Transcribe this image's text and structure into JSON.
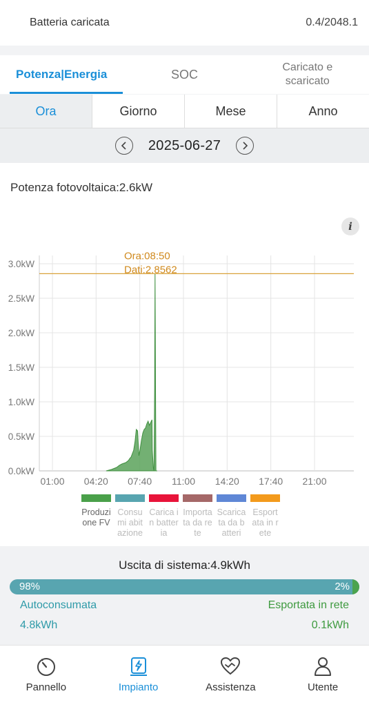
{
  "header": {
    "label": "Batteria caricata",
    "value": "0.4/2048.1"
  },
  "tabs": [
    "Potenza|Energia",
    "SOC",
    "Caricato e scaricato"
  ],
  "periods": [
    "Ora",
    "Giorno",
    "Mese",
    "Anno"
  ],
  "date": "2025-06-27",
  "pv_power": "Potenza fotovoltaica:2.6kW",
  "info_icon": "i",
  "chart_data": {
    "type": "area",
    "y_tick_labels": [
      "3.0kW",
      "2.5kW",
      "2.0kW",
      "1.5kW",
      "1.0kW",
      "0.5kW",
      "0.0kW"
    ],
    "x_tick_labels": [
      "01:00",
      "04:20",
      "07:40",
      "11:00",
      "14:20",
      "17:40",
      "21:00"
    ],
    "ylim": [
      0,
      3.0
    ],
    "xlim_hours": [
      0,
      24
    ],
    "grid": true,
    "tooltip": {
      "time_label": "Ora:08:50",
      "value_label": "Dati:2.8562",
      "value": 2.8562,
      "hour": 8.833
    },
    "series": [
      {
        "name": "Produzione FV",
        "color": "#5aa25a",
        "x": [
          5.1,
          5.5,
          5.9,
          6.1,
          6.3,
          6.6,
          6.8,
          6.9,
          7.0,
          7.1,
          7.2,
          7.3,
          7.4,
          7.5,
          7.6,
          7.7,
          7.8,
          7.9,
          8.0,
          8.1,
          8.2,
          8.3,
          8.4,
          8.5,
          8.6,
          8.62,
          8.7,
          8.75,
          8.8,
          8.833,
          8.87,
          8.9,
          9.0
        ],
        "y": [
          0.0,
          0.02,
          0.05,
          0.08,
          0.1,
          0.12,
          0.15,
          0.18,
          0.2,
          0.25,
          0.3,
          0.42,
          0.6,
          0.58,
          0.22,
          0.32,
          0.45,
          0.55,
          0.6,
          0.62,
          0.68,
          0.72,
          0.66,
          0.7,
          0.74,
          0.3,
          0.05,
          0.0,
          1.2,
          2.8562,
          1.2,
          0.0,
          0.0
        ]
      }
    ]
  },
  "legend": [
    {
      "label": "Produzione FV",
      "color": "#4aa04a",
      "active": true
    },
    {
      "label": "Consumi abitazione",
      "color": "#58a5b0",
      "active": false
    },
    {
      "label": "Carica in batteria",
      "color": "#e8143a",
      "active": false
    },
    {
      "label": "Importata da rete",
      "color": "#a56868",
      "active": false
    },
    {
      "label": "Scaricata da batteri",
      "color": "#5f87d6",
      "active": false
    },
    {
      "label": "Esportata in rete",
      "color": "#f39a1c",
      "active": false
    }
  ],
  "output": {
    "title": "Uscita di sistema:4.9kWh",
    "self_pct_label": "98%",
    "export_pct_label": "2%",
    "export_fraction": 0.02,
    "self_label": "Autoconsumata",
    "self_value": "4.8kWh",
    "export_label": "Esportata in rete",
    "export_value": "0.1kWh"
  },
  "nav": [
    {
      "label": "Pannello",
      "icon": "dashboard-gauge-icon",
      "active": false
    },
    {
      "label": "Impianto",
      "icon": "plant-bolt-icon",
      "active": true
    },
    {
      "label": "Assistenza",
      "icon": "heart-support-icon",
      "active": false
    },
    {
      "label": "Utente",
      "icon": "user-icon",
      "active": false
    }
  ]
}
